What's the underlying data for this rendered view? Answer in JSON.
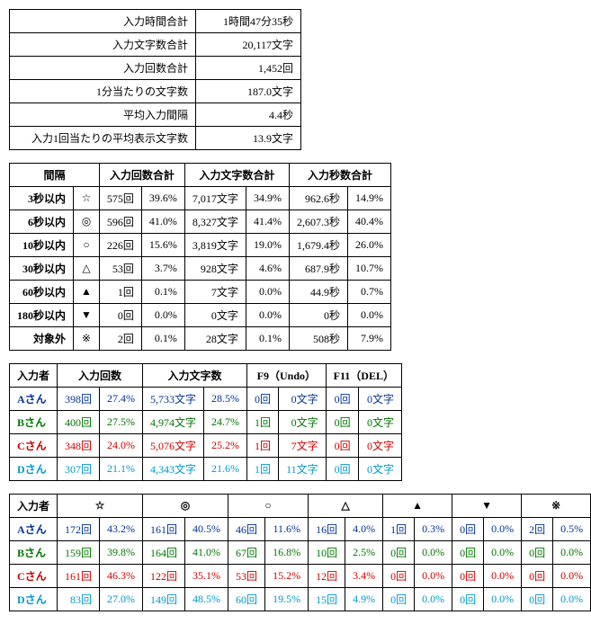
{
  "summary": {
    "rows": [
      {
        "label": "入力時間合計",
        "value": "1時間47分35秒"
      },
      {
        "label": "入力文字数合計",
        "value": "20,117文字"
      },
      {
        "label": "入力回数合計",
        "value": "1,452回"
      },
      {
        "label": "1分当たりの文字数",
        "value": "187.0文字"
      },
      {
        "label": "平均入力間隔",
        "value": "4.4秒"
      },
      {
        "label": "入力1回当たりの平均表示文字数",
        "value": "13.9文字"
      }
    ],
    "label_width": "190px",
    "value_width": "100px"
  },
  "interval": {
    "headers": [
      "間隔",
      "",
      "入力回数合計",
      "",
      "入力文字数合計",
      "",
      "入力秒数合計",
      ""
    ],
    "header_spans": [
      {
        "text": "間隔",
        "colspan": 2
      },
      {
        "text": "入力回数合計",
        "colspan": 2
      },
      {
        "text": "入力文字数合計",
        "colspan": 2
      },
      {
        "text": "入力秒数合計",
        "colspan": 2
      }
    ],
    "rows": [
      {
        "label": "3秒以内",
        "sym": "☆",
        "cnt": "575回",
        "cntp": "39.6%",
        "chars": "7,017文字",
        "charsp": "34.9%",
        "sec": "962.6秒",
        "secp": "14.9%"
      },
      {
        "label": "6秒以内",
        "sym": "◎",
        "cnt": "596回",
        "cntp": "41.0%",
        "chars": "8,327文字",
        "charsp": "41.4%",
        "sec": "2,607.3秒",
        "secp": "40.4%"
      },
      {
        "label": "10秒以内",
        "sym": "○",
        "cnt": "226回",
        "cntp": "15.6%",
        "chars": "3,819文字",
        "charsp": "19.0%",
        "sec": "1,679.4秒",
        "secp": "26.0%"
      },
      {
        "label": "30秒以内",
        "sym": "△",
        "cnt": "53回",
        "cntp": "3.7%",
        "chars": "928文字",
        "charsp": "4.6%",
        "sec": "687.9秒",
        "secp": "10.7%"
      },
      {
        "label": "60秒以内",
        "sym": "▲",
        "cnt": "1回",
        "cntp": "0.1%",
        "chars": "7文字",
        "charsp": "0.0%",
        "sec": "44.9秒",
        "secp": "0.7%"
      },
      {
        "label": "180秒以内",
        "sym": "▼",
        "cnt": "0回",
        "cntp": "0.0%",
        "chars": "0文字",
        "charsp": "0.0%",
        "sec": "0秒",
        "secp": "0.0%"
      },
      {
        "label": "対象外",
        "sym": "※",
        "cnt": "2回",
        "cntp": "0.1%",
        "chars": "28文字",
        "charsp": "0.1%",
        "sec": "508秒",
        "secp": "7.9%"
      }
    ]
  },
  "users": {
    "header_spans": [
      {
        "text": "入力者",
        "colspan": 1
      },
      {
        "text": "入力回数",
        "colspan": 2
      },
      {
        "text": "入力文字数",
        "colspan": 2
      },
      {
        "text": "F9（Undo）",
        "colspan": 2
      },
      {
        "text": "F11（DEL）",
        "colspan": 2
      }
    ],
    "rows": [
      {
        "name": "Aさん",
        "color": "#003399",
        "cnt": "398回",
        "cntp": "27.4%",
        "chars": "5,733文字",
        "charsp": "28.5%",
        "f9a": "0回",
        "f9b": "0文字",
        "f11a": "0回",
        "f11b": "0文字"
      },
      {
        "name": "Bさん",
        "color": "#007700",
        "cnt": "400回",
        "cntp": "27.5%",
        "chars": "4,974文字",
        "charsp": "24.7%",
        "f9a": "1回",
        "f9b": "0文字",
        "f11a": "0回",
        "f11b": "0文字"
      },
      {
        "name": "Cさん",
        "color": "#cc0000",
        "cnt": "348回",
        "cntp": "24.0%",
        "chars": "5,076文字",
        "charsp": "25.2%",
        "f9a": "1回",
        "f9b": "7文字",
        "f11a": "0回",
        "f11b": "0文字"
      },
      {
        "name": "Dさん",
        "color": "#0099cc",
        "cnt": "307回",
        "cntp": "21.1%",
        "chars": "4,343文字",
        "charsp": "21.6%",
        "f9a": "1回",
        "f9b": "11文字",
        "f11a": "0回",
        "f11b": "0文字"
      }
    ]
  },
  "usersym": {
    "header_spans": [
      {
        "text": "入力者",
        "colspan": 1
      },
      {
        "text": "☆",
        "colspan": 2
      },
      {
        "text": "◎",
        "colspan": 2
      },
      {
        "text": "○",
        "colspan": 2
      },
      {
        "text": "△",
        "colspan": 2
      },
      {
        "text": "▲",
        "colspan": 2
      },
      {
        "text": "▼",
        "colspan": 2
      },
      {
        "text": "※",
        "colspan": 2
      }
    ],
    "rows": [
      {
        "name": "Aさん",
        "color": "#003399",
        "c": [
          "172回",
          "43.2%",
          "161回",
          "40.5%",
          "46回",
          "11.6%",
          "16回",
          "4.0%",
          "1回",
          "0.3%",
          "0回",
          "0.0%",
          "2回",
          "0.5%"
        ]
      },
      {
        "name": "Bさん",
        "color": "#007700",
        "c": [
          "159回",
          "39.8%",
          "164回",
          "41.0%",
          "67回",
          "16.8%",
          "10回",
          "2.5%",
          "0回",
          "0.0%",
          "0回",
          "0.0%",
          "0回",
          "0.0%"
        ]
      },
      {
        "name": "Cさん",
        "color": "#cc0000",
        "c": [
          "161回",
          "46.3%",
          "122回",
          "35.1%",
          "53回",
          "15.2%",
          "12回",
          "3.4%",
          "0回",
          "0.0%",
          "0回",
          "0.0%",
          "0回",
          "0.0%"
        ]
      },
      {
        "name": "Dさん",
        "color": "#0099cc",
        "c": [
          "83回",
          "27.0%",
          "149回",
          "48.5%",
          "60回",
          "19.5%",
          "15回",
          "4.9%",
          "0回",
          "0.0%",
          "0回",
          "0.0%",
          "0回",
          "0.0%"
        ]
      }
    ]
  }
}
